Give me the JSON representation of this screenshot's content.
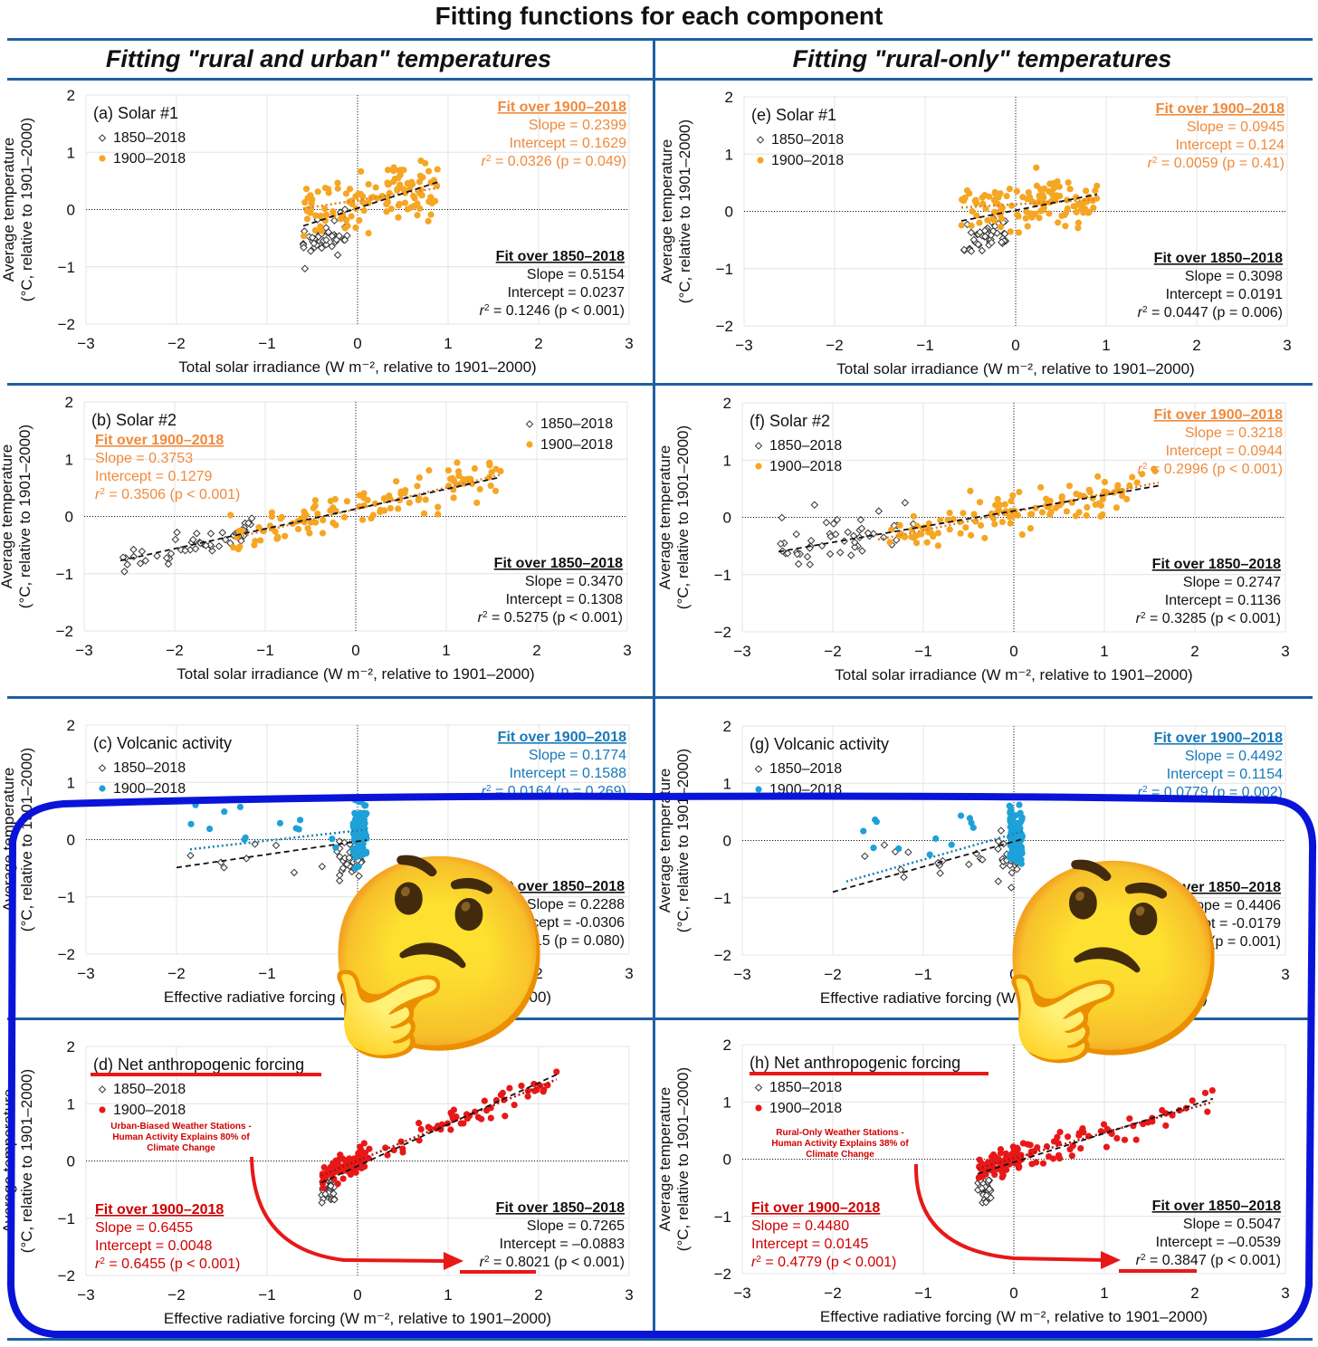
{
  "title": "Fitting functions for each component",
  "columns": [
    "Fitting \"rural and urban\" temperatures",
    "Fitting \"rural-only\" temperatures"
  ],
  "colors": {
    "rule": "#1f5fa0",
    "highlight": "#0a14d8",
    "orange": "#f5a623",
    "orange_text": "#f08a3c",
    "blue": "#1da1d8",
    "blue_text": "#1778b8",
    "red": "#e81818",
    "black": "#111111"
  },
  "ylabel": [
    "Average temperature",
    "(°C, relative to 1901–2000)"
  ],
  "annotations": {
    "d": [
      "Urban-Biased Weather Stations -",
      "Human Activity Explains 80% of",
      "Climate Change"
    ],
    "h": [
      "Rural-Only Weather Stations -",
      "Human Activity Explains 38% of",
      "Climate Change"
    ]
  },
  "overlay_icons": [
    "thinking-face-emoji",
    "thinking-face-emoji"
  ],
  "chart_data": [
    {
      "panel": "a",
      "type": "scatter",
      "title": "(a) Solar #1",
      "xlabel": "Total solar irradiance (W m-2, relative to 1901–2000)",
      "xlim": [
        -3,
        3
      ],
      "ylim": [
        -2,
        2
      ],
      "color": "orange",
      "legend": [
        "1850–2018",
        "1900–2018"
      ],
      "fit1900": {
        "header": "Fit over 1900–2018",
        "lines": [
          "Slope = 0.2399",
          "Intercept = 0.1629",
          "r2 = 0.0326 (p = 0.049)"
        ],
        "slope": 0.2399,
        "intercept": 0.1629
      },
      "fit1850": {
        "header": "Fit over 1850–2018",
        "lines": [
          "Slope = 0.5154",
          "Intercept = 0.0237",
          "r2 = 0.1246 (p < 0.001)"
        ],
        "slope": 0.5154,
        "intercept": 0.0237
      },
      "xrange1850": [
        -0.6,
        0.9
      ],
      "xrange1900": [
        -0.6,
        0.9
      ]
    },
    {
      "panel": "b",
      "type": "scatter",
      "title": "(b) Solar #2",
      "xlabel": "Total solar irradiance (W m-2, relative to 1901–2000)",
      "xlim": [
        -3,
        3
      ],
      "ylim": [
        -2,
        2
      ],
      "color": "orange",
      "legend": [
        "1850–2018",
        "1900–2018"
      ],
      "fit1900": {
        "header": "Fit over 1900–2018",
        "lines": [
          "Slope = 0.3753",
          "Intercept = 0.1279",
          "r2 = 0.3506 (p < 0.001)"
        ],
        "slope": 0.3753,
        "intercept": 0.1279
      },
      "fit1850": {
        "header": "Fit over 1850–2018",
        "lines": [
          "Slope = 0.3470",
          "Intercept = 0.1308",
          "r2 = 0.5275 (p < 0.001)"
        ],
        "slope": 0.347,
        "intercept": 0.1308
      },
      "xrange1850": [
        -2.6,
        1.6
      ],
      "xrange1900": [
        -1.3,
        1.6
      ]
    },
    {
      "panel": "c",
      "type": "scatter",
      "title": "(c) Volcanic activity",
      "xlabel": "Effective radiative forcing (W m-2, relative to 1901–2000)",
      "xlim": [
        -3,
        3
      ],
      "ylim": [
        -2,
        2
      ],
      "color": "blue",
      "legend": [
        "1850–2018",
        "1900–2018"
      ],
      "fit1900": {
        "header": "Fit over 1900–2018",
        "lines": [
          "Slope = 0.1774",
          "Intercept = 0.1588",
          "r2 = 0.0164 (p = 0.269)"
        ],
        "slope": 0.1774,
        "intercept": 0.1588
      },
      "fit1850": {
        "header": "Fit over 1850–2018",
        "lines": [
          "Slope = 0.2288",
          "Intercept = -0.0306",
          "r2 = 0.0215 (p = 0.080)"
        ],
        "slope": 0.2288,
        "intercept": -0.0306
      },
      "xrange1850": [
        -2.0,
        0.1
      ],
      "xrange1900": [
        -1.85,
        0.1
      ]
    },
    {
      "panel": "d",
      "type": "scatter",
      "title": "(d) Net anthropogenic forcing",
      "xlabel": "Effective radiative forcing (W m-2, relative to 1901–2000)",
      "xlim": [
        -3,
        3
      ],
      "ylim": [
        -2,
        2
      ],
      "color": "red",
      "legend": [
        "1850–2018",
        "1900–2018"
      ],
      "fit1900": {
        "header": "Fit over 1900–2018",
        "lines": [
          "Slope = 0.6455",
          "Intercept = 0.0048",
          "r2 = 0.6455 (p < 0.001)"
        ],
        "slope": 0.6455,
        "intercept": 0.0048
      },
      "fit1850": {
        "header": "Fit over 1850–2018",
        "lines": [
          "Slope = 0.7265",
          "Intercept = –0.0883",
          "r2 = 0.8021 (p < 0.001)"
        ],
        "slope": 0.7265,
        "intercept": -0.0883
      },
      "xrange1850": [
        -0.4,
        2.2
      ],
      "xrange1900": [
        -0.4,
        2.2
      ]
    },
    {
      "panel": "e",
      "type": "scatter",
      "title": "(e) Solar #1",
      "xlabel": "Total solar irradiance (W m-2, relative to 1901–2000)",
      "xlim": [
        -3,
        3
      ],
      "ylim": [
        -2,
        2
      ],
      "color": "orange",
      "legend": [
        "1850–2018",
        "1900–2018"
      ],
      "fit1900": {
        "header": "Fit over 1900–2018",
        "lines": [
          "Slope = 0.0945",
          "Intercept = 0.124",
          "r2 = 0.0059 (p = 0.41)"
        ],
        "slope": 0.0945,
        "intercept": 0.124
      },
      "fit1850": {
        "header": "Fit over 1850–2018",
        "lines": [
          "Slope = 0.3098",
          "Intercept = 0.0191",
          "r2 = 0.0447 (p = 0.006)"
        ],
        "slope": 0.3098,
        "intercept": 0.0191
      },
      "xrange1850": [
        -0.6,
        0.9
      ],
      "xrange1900": [
        -0.6,
        0.9
      ]
    },
    {
      "panel": "f",
      "type": "scatter",
      "title": "(f) Solar #2",
      "xlabel": "Total solar irradiance (W m-2, relative to 1901–2000)",
      "xlim": [
        -3,
        3
      ],
      "ylim": [
        -2,
        2
      ],
      "color": "orange",
      "legend": [
        "1850–2018",
        "1900–2018"
      ],
      "fit1900": {
        "header": "Fit over 1900–2018",
        "lines": [
          "Slope = 0.3218",
          "Intercept = 0.0944",
          "r2 = 0.2996 (p < 0.001)"
        ],
        "slope": 0.3218,
        "intercept": 0.0944
      },
      "fit1850": {
        "header": "Fit over 1850–2018",
        "lines": [
          "Slope = 0.2747",
          "Intercept = 0.1136",
          "r2 = 0.3285 (p < 0.001)"
        ],
        "slope": 0.2747,
        "intercept": 0.1136
      },
      "xrange1850": [
        -2.6,
        1.6
      ],
      "xrange1900": [
        -1.5,
        1.6
      ]
    },
    {
      "panel": "g",
      "type": "scatter",
      "title": "(g) Volcanic activity",
      "xlabel": "Effective radiative forcing (W m-2, relative to 1901–2000)",
      "xlim": [
        -3,
        3
      ],
      "ylim": [
        -2,
        2
      ],
      "color": "blue",
      "legend": [
        "1850–2018",
        "1900–2018"
      ],
      "fit1900": {
        "header": "Fit over 1900–2018",
        "lines": [
          "Slope = 0.4492",
          "Intercept = 0.1154",
          "r2 = 0.0779 (p = 0.002)"
        ],
        "slope": 0.4492,
        "intercept": 0.1154
      },
      "fit1850": {
        "header": "Fit over 1850–2018",
        "lines": [
          "Slope = 0.4406",
          "Intercept = -0.0179",
          "r2 = 0.0412 (p = 0.001)"
        ],
        "slope": 0.4406,
        "intercept": -0.0179
      },
      "xrange1850": [
        -2.0,
        0.1
      ],
      "xrange1900": [
        -1.85,
        0.1
      ]
    },
    {
      "panel": "h",
      "type": "scatter",
      "title": "(h) Net anthropogenic forcing",
      "xlabel": "Effective radiative forcing (W m-2, relative to 1901–2000)",
      "xlim": [
        -3,
        3
      ],
      "ylim": [
        -2,
        2
      ],
      "color": "red",
      "legend": [
        "1850–2018",
        "1900–2018"
      ],
      "fit1900": {
        "header": "Fit over 1900–2018",
        "lines": [
          "Slope = 0.4480",
          "Intercept = 0.0145",
          "r2 = 0.4779 (p < 0.001)"
        ],
        "slope": 0.448,
        "intercept": 0.0145
      },
      "fit1850": {
        "header": "Fit over 1850–2018",
        "lines": [
          "Slope = 0.5047",
          "Intercept = –0.0539",
          "r2 = 0.3847 (p < 0.001)"
        ],
        "slope": 0.5047,
        "intercept": -0.0539
      },
      "xrange1850": [
        -0.4,
        2.2
      ],
      "xrange1900": [
        -0.4,
        2.2
      ]
    }
  ]
}
